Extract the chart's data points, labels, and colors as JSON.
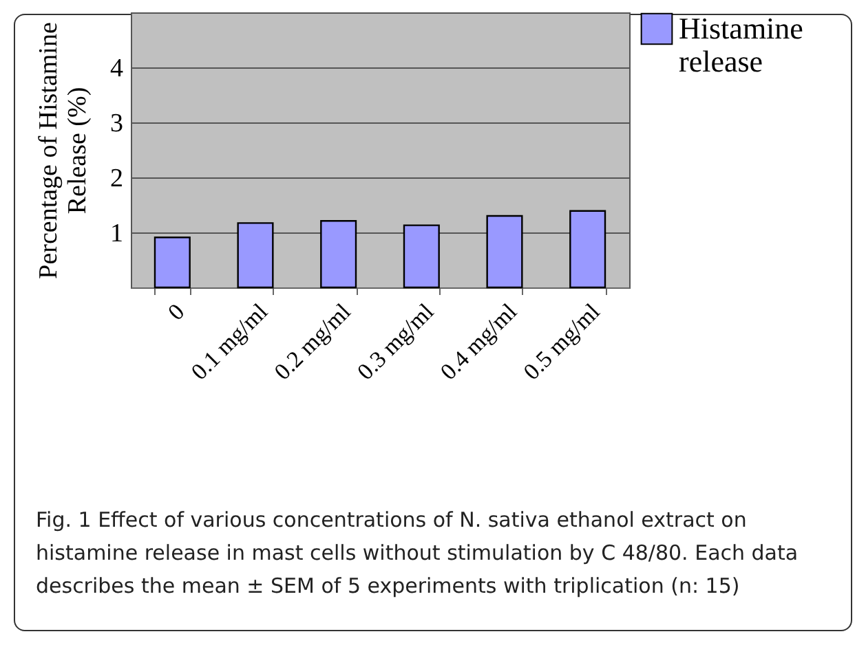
{
  "chart_data": {
    "type": "bar",
    "ylabel": "Percentage of Histamine Release (%)",
    "categories": [
      "0",
      "0.1 mg/ml",
      "0.2 mg/ml",
      "0.3 mg/ml",
      "0.4 mg/ml",
      "0.5  mg/ml"
    ],
    "series": [
      {
        "name": "Histamine release",
        "color": "#9999ff",
        "values": [
          0.91,
          1.17,
          1.21,
          1.13,
          1.3,
          1.39
        ]
      }
    ],
    "ylim": [
      0,
      5
    ],
    "yticks": [
      1,
      2,
      3,
      4
    ],
    "grid": "y",
    "legend": "right",
    "annotations": [
      "Fig. 1  Effect of various concentrations of N. sativa ethanol extract on histamine release in mast cells without stimulation by C 48/80. Each data describes the mean ± SEM of 5 experiments with triplication (n: 15)"
    ]
  }
}
